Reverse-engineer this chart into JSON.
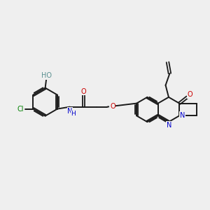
{
  "background_color": "#efefef",
  "bond_color": "#1a1a1a",
  "N_color": "#0000cc",
  "O_color": "#cc0000",
  "Cl_color": "#008000",
  "H_color": "#5a9090",
  "figsize": [
    3.0,
    3.0
  ],
  "dpi": 100,
  "xlim": [
    0,
    10
  ],
  "ylim": [
    0,
    10
  ]
}
